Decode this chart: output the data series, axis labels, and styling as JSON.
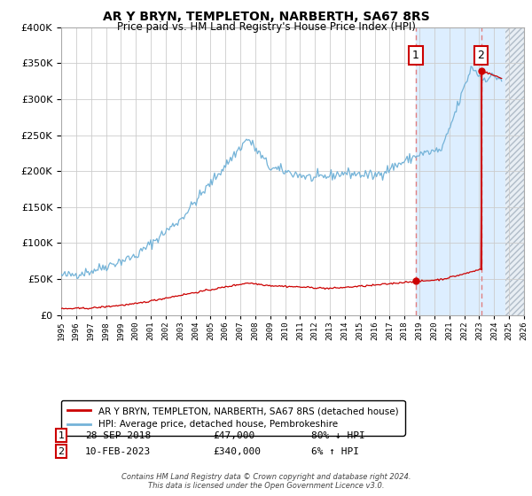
{
  "title": "AR Y BRYN, TEMPLETON, NARBERTH, SA67 8RS",
  "subtitle": "Price paid vs. HM Land Registry's House Price Index (HPI)",
  "footer": "Contains HM Land Registry data © Crown copyright and database right 2024.\nThis data is licensed under the Open Government Licence v3.0.",
  "legend_line1": "AR Y BRYN, TEMPLETON, NARBERTH, SA67 8RS (detached house)",
  "legend_line2": "HPI: Average price, detached house, Pembrokeshire",
  "sale1_date": "28-SEP-2018",
  "sale1_price": "£47,000",
  "sale1_hpi": "80% ↓ HPI",
  "sale2_date": "10-FEB-2023",
  "sale2_price": "£340,000",
  "sale2_hpi": "6% ↑ HPI",
  "sale1_year": 2018.75,
  "sale1_value": 47000,
  "sale2_year": 2023.12,
  "sale2_value": 340000,
  "hpi_color": "#74b3d8",
  "price_color": "#cc0000",
  "dashed_color": "#e08080",
  "shaded_color": "#ddeeff",
  "hatch_color": "#c0ccd8",
  "background_color": "#ffffff",
  "grid_color": "#cccccc",
  "ylim": [
    0,
    400000
  ],
  "xlim_start": 1995,
  "xlim_end": 2026,
  "hatch_start": 2024.75
}
